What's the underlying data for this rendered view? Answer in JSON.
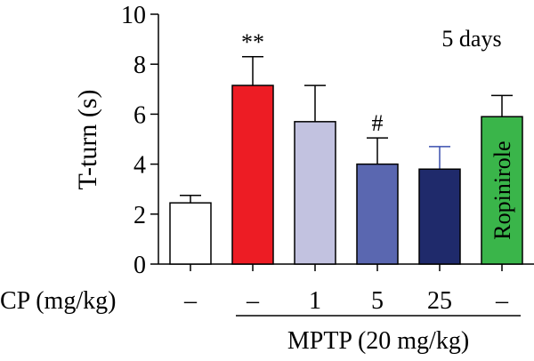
{
  "chart_data": {
    "type": "bar",
    "ylabel": "T-turn (s)",
    "ylim": [
      0,
      10
    ],
    "yticks": [
      "0",
      "2",
      "4",
      "6",
      "8",
      "10"
    ],
    "annotation": "5 days",
    "row_label": "CP (mg/kg)",
    "group_label": "MPTP (20 mg/kg)",
    "bars": [
      {
        "cp": "–",
        "value": 2.45,
        "error": 0.3,
        "color": "#ffffff",
        "err_color": "#000000",
        "sig": "",
        "bar_label": ""
      },
      {
        "cp": "–",
        "value": 7.15,
        "error": 1.15,
        "color": "#ed1c24",
        "err_color": "#000000",
        "sig": "**",
        "bar_label": ""
      },
      {
        "cp": "1",
        "value": 5.7,
        "error": 1.45,
        "color": "#c2c2e0",
        "err_color": "#000000",
        "sig": "",
        "bar_label": ""
      },
      {
        "cp": "5",
        "value": 4.0,
        "error": 1.05,
        "color": "#5a67b0",
        "err_color": "#000000",
        "sig": "#",
        "bar_label": ""
      },
      {
        "cp": "25",
        "value": 3.8,
        "error": 0.9,
        "color": "#1f2a6b",
        "err_color": "#3a4fae",
        "sig": "",
        "bar_label": ""
      },
      {
        "cp": "–",
        "value": 5.9,
        "error": 0.85,
        "color": "#3ab54a",
        "err_color": "#000000",
        "sig": "",
        "bar_label": "Ropinirole"
      }
    ]
  }
}
